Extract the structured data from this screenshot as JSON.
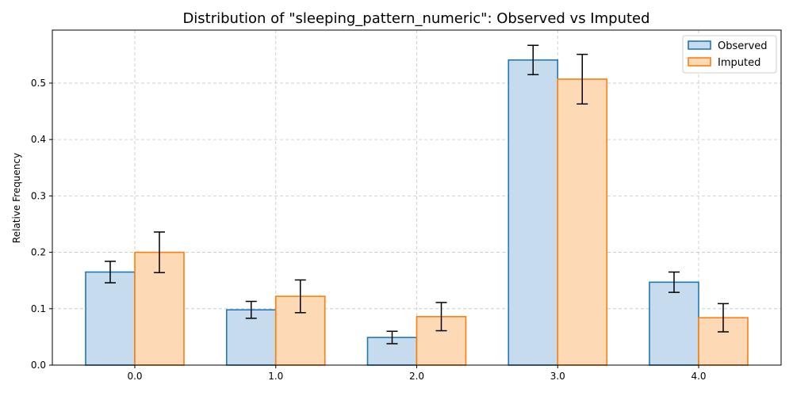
{
  "chart_data": {
    "type": "bar",
    "title": "Distribution of \"sleeping_pattern_numeric\": Observed vs Imputed",
    "xlabel": "",
    "ylabel": "Relative Frequency",
    "categories": [
      "0.0",
      "1.0",
      "2.0",
      "3.0",
      "4.0"
    ],
    "ylim": [
      0,
      0.594
    ],
    "yticks": [
      "0.0",
      "0.1",
      "0.2",
      "0.3",
      "0.4",
      "0.5"
    ],
    "grid": true,
    "legend_position": "top-right",
    "series": [
      {
        "name": "Observed",
        "values": [
          0.165,
          0.098,
          0.049,
          0.541,
          0.147
        ],
        "errors": [
          0.019,
          0.015,
          0.011,
          0.026,
          0.018
        ],
        "fill": "#c6dbed",
        "stroke": "#1f77b4"
      },
      {
        "name": "Imputed",
        "values": [
          0.2,
          0.122,
          0.086,
          0.507,
          0.084
        ],
        "errors": [
          0.036,
          0.029,
          0.025,
          0.044,
          0.025
        ],
        "fill": "#fdd9b5",
        "stroke": "#ff7f0e"
      }
    ]
  }
}
